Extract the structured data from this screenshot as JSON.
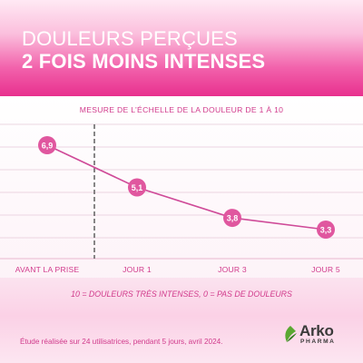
{
  "header": {
    "title_line1": "DOULEURS PERÇUES",
    "title_line2": "2 FOIS MOINS INTENSES"
  },
  "colors": {
    "accent": "#e8308e",
    "line": "#cf4a98",
    "marker": "#e0579f",
    "text": "#d13b8c",
    "grid": "#e6c9d8",
    "divider": "#555555"
  },
  "chart_data": {
    "type": "line",
    "title": "MESURE DE L’ÉCHELLE DE LA DOULEUR DE 1 À 10",
    "categories": [
      "AVANT LA PRISE",
      "JOUR 1",
      "JOUR 3",
      "JOUR 5"
    ],
    "series": [
      {
        "values": [
          6.9,
          5.1,
          3.8,
          3.3
        ],
        "labels": [
          "6,9",
          "5,1",
          "3,8",
          "3,3"
        ]
      }
    ],
    "ylim": [
      0,
      10
    ],
    "grid": true,
    "divider_after_category": 0
  },
  "legend_note": "10 = DOULEURS TRÈS INTENSES, 0 = PAS DE DOULEURS",
  "study_note": "Étude réalisée sur 24 utilisatrices, pendant 5 jours, avril 2024.",
  "logo": {
    "name": "Arko",
    "sub": "PHARMA",
    "icon": "arko-leaf-icon"
  }
}
